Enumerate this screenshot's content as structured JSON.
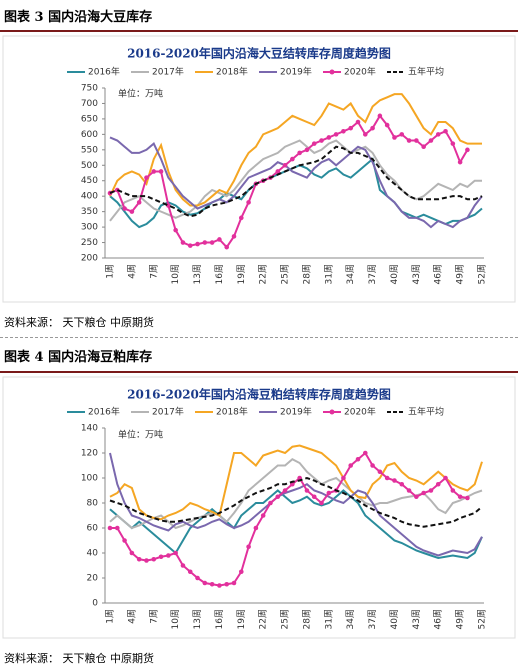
{
  "captions": [
    "图表 3 国内沿海大豆库存",
    "图表 4 国内沿海豆粕库存"
  ],
  "sources": [
    "资料来源： 天下粮仓 中原期货",
    "资料来源： 天下粮仓 中原期货"
  ],
  "chart_data": [
    {
      "type": "line",
      "title": "2016-2020年国内沿海大豆结转库存周度趋势图",
      "unit_label": "单位：万吨",
      "categories": [
        "1周",
        null,
        null,
        "4周",
        null,
        null,
        "7周",
        null,
        null,
        "10周",
        null,
        null,
        "13周",
        null,
        null,
        "16周",
        null,
        null,
        "19周",
        null,
        null,
        "22周",
        null,
        null,
        "25周",
        null,
        null,
        "28周",
        null,
        null,
        "31周",
        null,
        null,
        "34周",
        null,
        null,
        "37周",
        null,
        null,
        "40周",
        null,
        null,
        "43周",
        null,
        null,
        "46周",
        null,
        null,
        "49周",
        null,
        null,
        "52周"
      ],
      "ylim": [
        200,
        750
      ],
      "yticks": [
        200,
        250,
        300,
        350,
        400,
        450,
        500,
        550,
        600,
        650,
        700,
        750
      ],
      "series": [
        {
          "name": "2016年",
          "color": "#2a8c9c",
          "values": [
            400,
            380,
            350,
            320,
            300,
            310,
            330,
            370,
            380,
            370,
            350,
            340,
            345,
            360,
            380,
            390,
            410,
            400,
            390,
            420,
            440,
            450,
            460,
            470,
            480,
            490,
            500,
            490,
            470,
            460,
            480,
            490,
            470,
            460,
            480,
            500,
            520,
            420,
            400,
            380,
            350,
            340,
            330,
            340,
            330,
            320,
            310,
            320,
            320,
            330,
            340,
            360
          ]
        },
        {
          "name": "2017年",
          "color": "#b4b4b4",
          "values": [
            320,
            350,
            380,
            390,
            400,
            380,
            360,
            350,
            340,
            330,
            340,
            350,
            370,
            400,
            420,
            410,
            400,
            420,
            450,
            480,
            500,
            520,
            530,
            540,
            560,
            570,
            580,
            560,
            540,
            550,
            570,
            580,
            560,
            540,
            550,
            560,
            540,
            500,
            470,
            450,
            420,
            400,
            390,
            400,
            420,
            440,
            430,
            420,
            440,
            430,
            450,
            450
          ]
        },
        {
          "name": "2018年",
          "color": "#f5a623",
          "values": [
            400,
            450,
            470,
            480,
            470,
            440,
            520,
            565,
            480,
            420,
            390,
            370,
            370,
            380,
            400,
            420,
            410,
            450,
            500,
            540,
            560,
            600,
            610,
            620,
            640,
            660,
            650,
            640,
            630,
            660,
            700,
            690,
            680,
            700,
            660,
            640,
            690,
            710,
            720,
            730,
            730,
            700,
            660,
            620,
            600,
            640,
            640,
            620,
            580,
            570,
            570,
            570
          ]
        },
        {
          "name": "2019年",
          "color": "#7a68ae",
          "values": [
            590,
            580,
            560,
            540,
            540,
            550,
            570,
            520,
            460,
            430,
            400,
            380,
            360,
            370,
            380,
            390,
            380,
            400,
            430,
            460,
            470,
            480,
            490,
            510,
            500,
            480,
            470,
            460,
            490,
            510,
            520,
            500,
            520,
            540,
            560,
            550,
            510,
            450,
            400,
            380,
            350,
            330,
            330,
            320,
            300,
            320,
            310,
            300,
            320,
            330,
            370,
            400
          ]
        },
        {
          "name": "2020年",
          "color": "#e2309c",
          "marker": "circle",
          "values": [
            410,
            420,
            360,
            350,
            380,
            460,
            480,
            480,
            370,
            290,
            250,
            240,
            245,
            250,
            250,
            260,
            235,
            270,
            330,
            380,
            440,
            450,
            460,
            480,
            500,
            520,
            540,
            550,
            570,
            580,
            590,
            600,
            610,
            620,
            640,
            600,
            620,
            660,
            630,
            590,
            600,
            580,
            580,
            560,
            580,
            600,
            610,
            570,
            510,
            550,
            null,
            null
          ]
        },
        {
          "name": "五年平均",
          "color": "#111111",
          "dash": true,
          "values": [
            410,
            420,
            410,
            400,
            400,
            400,
            390,
            380,
            370,
            360,
            345,
            335,
            340,
            360,
            370,
            375,
            380,
            390,
            400,
            420,
            440,
            450,
            460,
            470,
            480,
            490,
            500,
            505,
            510,
            520,
            540,
            560,
            555,
            540,
            540,
            530,
            520,
            490,
            460,
            440,
            420,
            400,
            390,
            390,
            390,
            390,
            395,
            400,
            400,
            390,
            390,
            400
          ]
        }
      ]
    },
    {
      "type": "line",
      "title": "2016-2020年国内沿海豆粕结转库存周度趋势图",
      "unit_label": "单位：万吨",
      "categories": [
        "1周",
        null,
        null,
        "4周",
        null,
        null,
        "7周",
        null,
        null,
        "10周",
        null,
        null,
        "13周",
        null,
        null,
        "16周",
        null,
        null,
        "19周",
        null,
        null,
        "22周",
        null,
        null,
        "25周",
        null,
        null,
        "28周",
        null,
        null,
        "31周",
        null,
        null,
        "34周",
        null,
        null,
        "37周",
        null,
        null,
        "40周",
        null,
        null,
        "43周",
        null,
        null,
        "46周",
        null,
        null,
        "49周",
        null,
        null,
        "52周"
      ],
      "ylim": [
        0,
        140
      ],
      "yticks": [
        0,
        20,
        40,
        60,
        80,
        100,
        120,
        140
      ],
      "series": [
        {
          "name": "2016年",
          "color": "#2a8c9c",
          "values": [
            75,
            70,
            65,
            60,
            65,
            60,
            55,
            50,
            45,
            40,
            50,
            60,
            65,
            70,
            75,
            70,
            65,
            60,
            70,
            75,
            80,
            80,
            85,
            90,
            85,
            80,
            82,
            85,
            80,
            78,
            80,
            85,
            90,
            85,
            80,
            70,
            65,
            60,
            55,
            50,
            48,
            45,
            42,
            40,
            38,
            36,
            37,
            38,
            37,
            36,
            40,
            53
          ]
        },
        {
          "name": "2017年",
          "color": "#b4b4b4",
          "values": [
            65,
            70,
            65,
            60,
            62,
            65,
            68,
            70,
            65,
            60,
            62,
            65,
            68,
            70,
            72,
            70,
            65,
            72,
            80,
            90,
            95,
            100,
            105,
            110,
            110,
            115,
            112,
            105,
            100,
            95,
            98,
            100,
            95,
            90,
            85,
            80,
            78,
            80,
            80,
            82,
            84,
            85,
            86,
            88,
            82,
            75,
            72,
            80,
            82,
            85,
            88,
            90
          ]
        },
        {
          "name": "2018年",
          "color": "#f5a623",
          "values": [
            85,
            88,
            95,
            92,
            75,
            70,
            68,
            67,
            70,
            72,
            75,
            80,
            78,
            75,
            73,
            70,
            95,
            120,
            120,
            115,
            110,
            118,
            120,
            122,
            120,
            125,
            126,
            124,
            122,
            120,
            115,
            110,
            100,
            90,
            85,
            84,
            95,
            100,
            110,
            112,
            105,
            100,
            98,
            95,
            100,
            105,
            100,
            95,
            92,
            90,
            95,
            113
          ]
        },
        {
          "name": "2019年",
          "color": "#7a68ae",
          "values": [
            120,
            95,
            80,
            70,
            68,
            65,
            62,
            60,
            58,
            63,
            65,
            62,
            60,
            62,
            65,
            67,
            63,
            60,
            62,
            65,
            70,
            75,
            80,
            85,
            88,
            90,
            92,
            95,
            90,
            88,
            85,
            82,
            80,
            85,
            90,
            88,
            80,
            70,
            65,
            60,
            55,
            50,
            45,
            42,
            40,
            38,
            40,
            42,
            41,
            40,
            43,
            53
          ]
        },
        {
          "name": "2020年",
          "color": "#e2309c",
          "marker": "circle",
          "values": [
            60,
            60,
            50,
            40,
            35,
            34,
            35,
            37,
            38,
            40,
            30,
            25,
            20,
            16,
            15,
            14,
            15,
            16,
            25,
            45,
            60,
            70,
            80,
            85,
            90,
            95,
            100,
            90,
            85,
            80,
            88,
            90,
            100,
            110,
            115,
            120,
            110,
            105,
            100,
            98,
            95,
            90,
            85,
            88,
            90,
            95,
            100,
            90,
            85,
            84,
            null,
            null
          ]
        },
        {
          "name": "五年平均",
          "color": "#111111",
          "dash": true,
          "values": [
            82,
            80,
            78,
            75,
            72,
            70,
            68,
            66,
            65,
            65,
            66,
            67,
            68,
            69,
            70,
            72,
            75,
            78,
            82,
            85,
            88,
            90,
            92,
            95,
            95,
            97,
            98,
            100,
            98,
            95,
            93,
            90,
            88,
            85,
            82,
            78,
            75,
            72,
            70,
            68,
            65,
            63,
            62,
            61,
            62,
            63,
            64,
            65,
            68,
            70,
            72,
            77
          ]
        }
      ]
    }
  ]
}
